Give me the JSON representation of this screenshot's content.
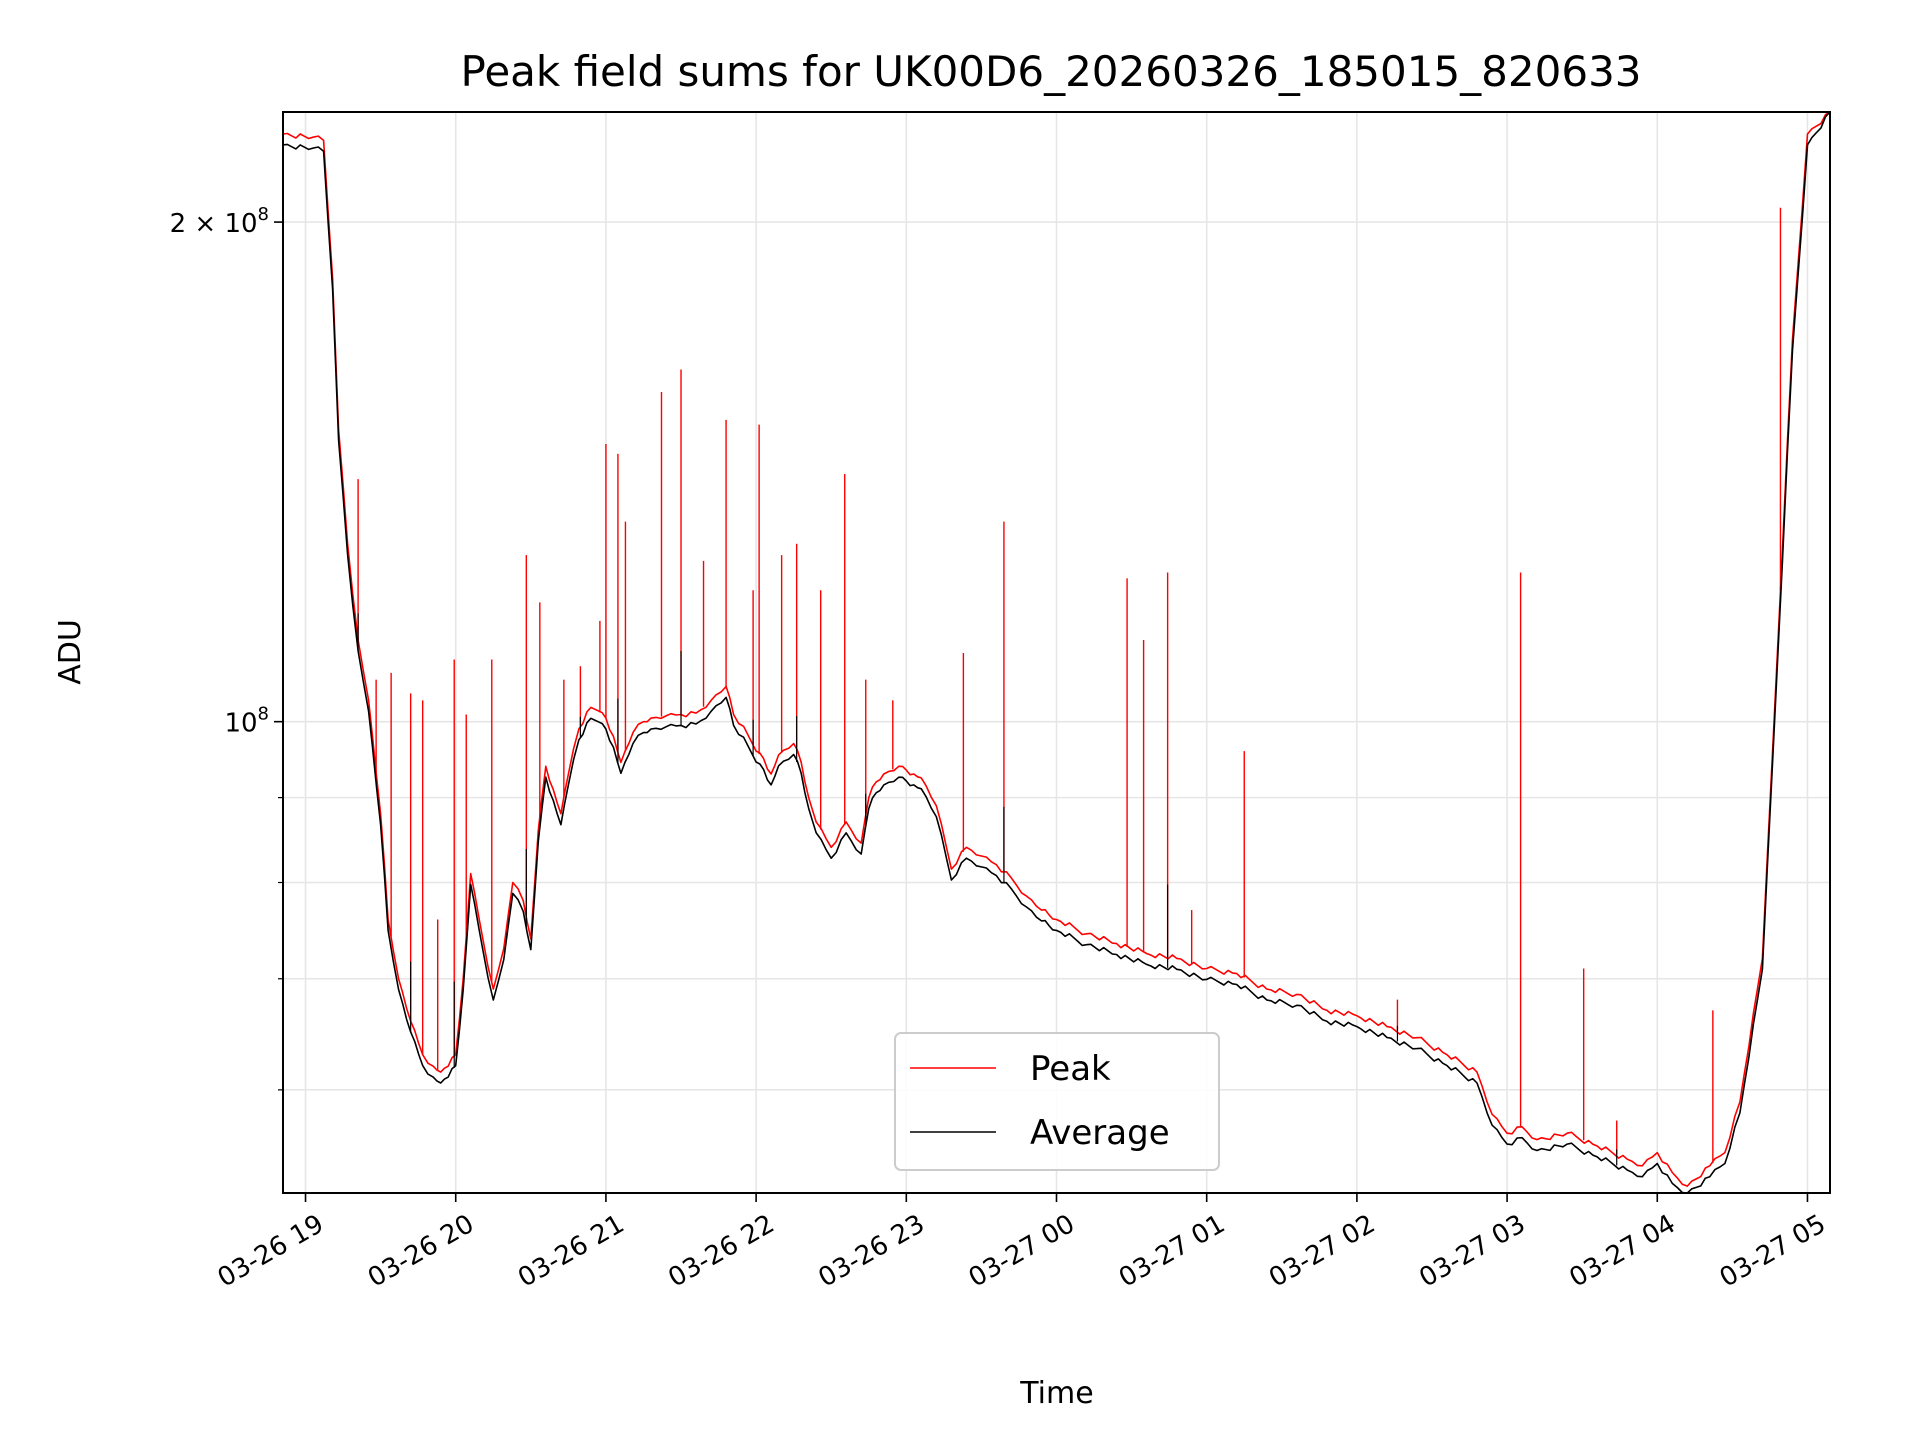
{
  "chart_data": {
    "type": "line",
    "title": "Peak field sums for UK00D6_20260326_185015_820633",
    "xlabel": "Time",
    "ylabel": "ADU",
    "yscale": "log",
    "xlim_hours": [
      -0.15,
      10.15
    ],
    "ylim": [
      52000000,
      233000000
    ],
    "grid": true,
    "legend_position": "lower-center",
    "x_tick_labels": [
      "03-26 19",
      "03-26 20",
      "03-26 21",
      "03-26 22",
      "03-26 23",
      "03-27 00",
      "03-27 01",
      "03-27 02",
      "03-27 03",
      "03-27 04",
      "03-27 05"
    ],
    "x_tick_hours": [
      0,
      1,
      2,
      3,
      4,
      5,
      6,
      7,
      8,
      9,
      10
    ],
    "y_major_ticks": [
      {
        "value": 100000000,
        "label": "10",
        "exp": "8",
        "prefix": ""
      },
      {
        "value": 200000000,
        "label": "10",
        "exp": "8",
        "prefix": "2 × "
      }
    ],
    "y_minor_ticks": [
      60000000,
      70000000,
      80000000,
      90000000
    ],
    "series": [
      {
        "name": "Peak",
        "color": "#ff0000",
        "x_hours": [
          -0.15,
          0.05,
          0.12,
          0.18,
          0.22,
          0.28,
          0.35,
          0.42,
          0.5,
          0.55,
          0.62,
          0.7,
          0.78,
          0.85,
          0.9,
          0.95,
          1.0,
          1.05,
          1.1,
          1.18,
          1.25,
          1.32,
          1.38,
          1.45,
          1.5,
          1.55,
          1.6,
          1.65,
          1.7,
          1.75,
          1.82,
          1.9,
          1.95,
          2.0,
          2.05,
          2.1,
          2.18,
          2.25,
          2.3,
          2.4,
          2.5,
          2.6,
          2.7,
          2.8,
          2.85,
          2.95,
          3.0,
          3.05,
          3.1,
          3.15,
          3.25,
          3.3,
          3.35,
          3.4,
          3.5,
          3.6,
          3.7,
          3.75,
          3.8,
          3.85,
          3.95,
          4.0,
          4.05,
          4.1,
          4.2,
          4.3,
          4.4,
          4.5,
          4.6,
          4.7,
          4.8,
          4.9,
          4.95,
          5.0,
          5.2,
          5.4,
          5.6,
          5.8,
          6.0,
          6.2,
          6.4,
          6.6,
          6.8,
          7.0,
          7.2,
          7.4,
          7.6,
          7.8,
          7.9,
          8.0,
          8.1,
          8.2,
          8.4,
          8.6,
          8.8,
          8.9,
          9.0,
          9.1,
          9.2,
          9.35,
          9.45,
          9.55,
          9.7,
          9.8,
          9.9,
          10.0,
          10.15
        ],
        "y_values": [
          226000000,
          225000000,
          224000000,
          185000000,
          150000000,
          128000000,
          112000000,
          103000000,
          88000000,
          76000000,
          70000000,
          66000000,
          63000000,
          62000000,
          61500000,
          62000000,
          63000000,
          70000000,
          81000000,
          74000000,
          69000000,
          73000000,
          80000000,
          78000000,
          74000000,
          86000000,
          94000000,
          91000000,
          88000000,
          93000000,
          99000000,
          102000000,
          101500000,
          100500000,
          98000000,
          94500000,
          98500000,
          100000000,
          100500000,
          100800000,
          101000000,
          101200000,
          103000000,
          105000000,
          101000000,
          98000000,
          96000000,
          95000000,
          93000000,
          95500000,
          97000000,
          94500000,
          90000000,
          87000000,
          84000000,
          87000000,
          84500000,
          90000000,
          92000000,
          93000000,
          94000000,
          93500000,
          93000000,
          92500000,
          89000000,
          81500000,
          84000000,
          83000000,
          82000000,
          80500000,
          78500000,
          77000000,
          76500000,
          76000000,
          74500000,
          73500000,
          72500000,
          72000000,
          71000000,
          70500000,
          69000000,
          68500000,
          67000000,
          66500000,
          65500000,
          64500000,
          63000000,
          61500000,
          58000000,
          56500000,
          57000000,
          56000000,
          56500000,
          55500000,
          54500000,
          54000000,
          55000000,
          53500000,
          52500000,
          54000000,
          55000000,
          59000000,
          72000000,
          110000000,
          170000000,
          226000000,
          240000000
        ],
        "spikes": [
          {
            "hour": 0.35,
            "value": 140000000
          },
          {
            "hour": 0.47,
            "value": 106000000
          },
          {
            "hour": 0.57,
            "value": 107000000
          },
          {
            "hour": 0.7,
            "value": 104000000
          },
          {
            "hour": 0.78,
            "value": 103000000
          },
          {
            "hour": 0.88,
            "value": 76000000
          },
          {
            "hour": 0.99,
            "value": 109000000
          },
          {
            "hour": 1.07,
            "value": 101000000
          },
          {
            "hour": 1.24,
            "value": 109000000
          },
          {
            "hour": 1.47,
            "value": 126000000
          },
          {
            "hour": 1.56,
            "value": 118000000
          },
          {
            "hour": 1.72,
            "value": 106000000
          },
          {
            "hour": 1.83,
            "value": 108000000
          },
          {
            "hour": 1.96,
            "value": 115000000
          },
          {
            "hour": 2.0,
            "value": 147000000
          },
          {
            "hour": 2.08,
            "value": 145000000
          },
          {
            "hour": 2.13,
            "value": 132000000
          },
          {
            "hour": 2.37,
            "value": 158000000
          },
          {
            "hour": 2.5,
            "value": 163000000
          },
          {
            "hour": 2.65,
            "value": 125000000
          },
          {
            "hour": 2.8,
            "value": 152000000
          },
          {
            "hour": 2.98,
            "value": 120000000
          },
          {
            "hour": 3.02,
            "value": 151000000
          },
          {
            "hour": 3.17,
            "value": 126000000
          },
          {
            "hour": 3.27,
            "value": 128000000
          },
          {
            "hour": 3.43,
            "value": 120000000
          },
          {
            "hour": 3.59,
            "value": 141000000
          },
          {
            "hour": 3.73,
            "value": 106000000
          },
          {
            "hour": 3.91,
            "value": 103000000
          },
          {
            "hour": 4.38,
            "value": 110000000
          },
          {
            "hour": 4.65,
            "value": 132000000
          },
          {
            "hour": 5.47,
            "value": 122000000
          },
          {
            "hour": 5.58,
            "value": 112000000
          },
          {
            "hour": 5.74,
            "value": 123000000
          },
          {
            "hour": 5.9,
            "value": 77000000
          },
          {
            "hour": 6.25,
            "value": 96000000
          },
          {
            "hour": 7.27,
            "value": 68000000
          },
          {
            "hour": 8.09,
            "value": 123000000
          },
          {
            "hour": 8.51,
            "value": 71000000
          },
          {
            "hour": 8.73,
            "value": 57500000
          },
          {
            "hour": 9.37,
            "value": 67000000
          },
          {
            "hour": 9.82,
            "value": 204000000
          }
        ]
      },
      {
        "name": "Average",
        "color": "#000000",
        "y_scale_factor": 0.985,
        "spike_scale_factor": 0.88
      }
    ]
  }
}
